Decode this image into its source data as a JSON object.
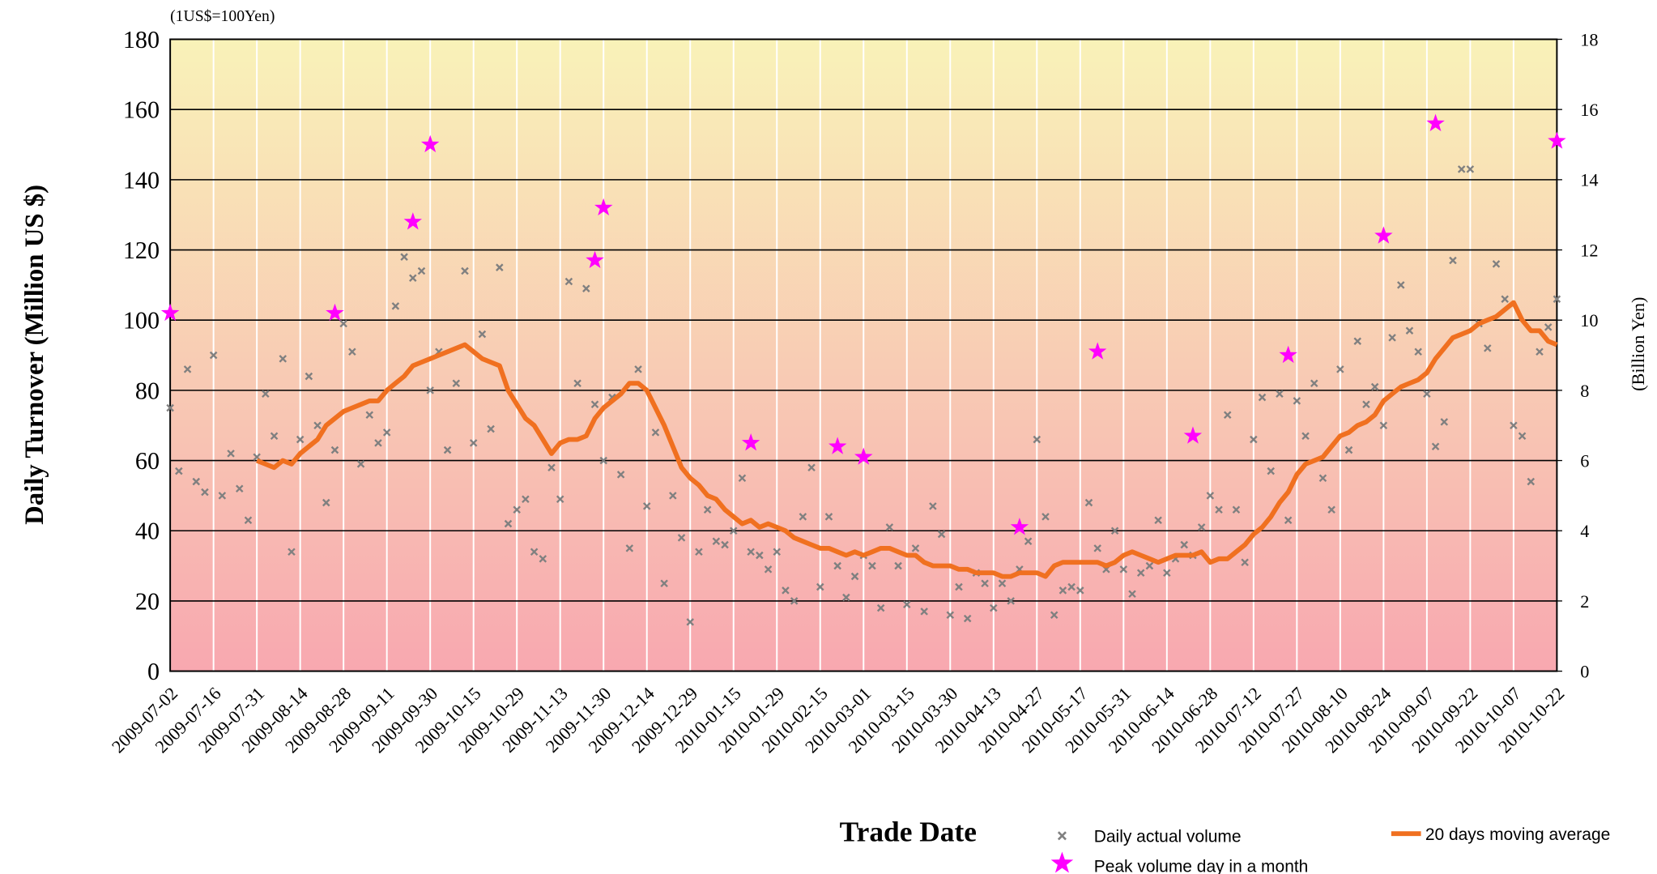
{
  "chart_data": {
    "type": "scatter",
    "subtitle": "(1US$=100Yen)",
    "x_label": "Trade Date",
    "y_label": "Daily Turnover (Million US $)",
    "y2_label": "(Billion Yen)",
    "categories": [
      "2009-07-02",
      null,
      null,
      null,
      null,
      "2009-07-16",
      null,
      null,
      null,
      null,
      "2009-07-31",
      null,
      null,
      null,
      null,
      "2009-08-14",
      null,
      null,
      null,
      null,
      "2009-08-28",
      null,
      null,
      null,
      null,
      "2009-09-11",
      null,
      null,
      null,
      null,
      "2009-09-30",
      null,
      null,
      null,
      null,
      "2009-10-15",
      null,
      null,
      null,
      null,
      "2009-10-29",
      null,
      null,
      null,
      null,
      "2009-11-13",
      null,
      null,
      null,
      null,
      "2009-11-30",
      null,
      null,
      null,
      null,
      "2009-12-14",
      null,
      null,
      null,
      null,
      "2009-12-29",
      null,
      null,
      null,
      null,
      "2010-01-15",
      null,
      null,
      null,
      null,
      "2010-01-29",
      null,
      null,
      null,
      null,
      "2010-02-15",
      null,
      null,
      null,
      null,
      "2010-03-01",
      null,
      null,
      null,
      null,
      "2010-03-15",
      null,
      null,
      null,
      null,
      "2010-03-30",
      null,
      null,
      null,
      null,
      "2010-04-13",
      null,
      null,
      null,
      null,
      "2010-04-27",
      null,
      null,
      null,
      null,
      "2010-05-17",
      null,
      null,
      null,
      null,
      "2010-05-31",
      null,
      null,
      null,
      null,
      "2010-06-14",
      null,
      null,
      null,
      null,
      "2010-06-28",
      null,
      null,
      null,
      null,
      "2010-07-12",
      null,
      null,
      null,
      null,
      "2010-07-27",
      null,
      null,
      null,
      null,
      "2010-08-10",
      null,
      null,
      null,
      null,
      "2010-08-24",
      null,
      null,
      null,
      null,
      "2010-09-07",
      null,
      null,
      null,
      null,
      "2010-09-22",
      null,
      null,
      null,
      null,
      "2010-10-07",
      null,
      null,
      null,
      null,
      "2010-10-22"
    ],
    "series": [
      {
        "name": "Daily actual volume",
        "type": "scatter",
        "marker": "x",
        "color": "#808080",
        "values": [
          75,
          57,
          86,
          54,
          51,
          90,
          50,
          62,
          52,
          43,
          61,
          79,
          67,
          89,
          34,
          66,
          84,
          70,
          48,
          63,
          99,
          91,
          59,
          73,
          65,
          68,
          104,
          118,
          112,
          114,
          80,
          91,
          63,
          82,
          114,
          65,
          96,
          69,
          115,
          42,
          46,
          49,
          34,
          32,
          58,
          49,
          111,
          82,
          109,
          76,
          60,
          78,
          56,
          35,
          86,
          47,
          68,
          25,
          50,
          38,
          14,
          34,
          46,
          37,
          36,
          40,
          55,
          34,
          33,
          29,
          34,
          23,
          20,
          44,
          58,
          24,
          44,
          30,
          21,
          27,
          33,
          30,
          18,
          41,
          30,
          19,
          35,
          17,
          47,
          39,
          16,
          24,
          15,
          28,
          25,
          18,
          25,
          20,
          29,
          37,
          66,
          44,
          16,
          23,
          24,
          23,
          48,
          35,
          29,
          40,
          29,
          22,
          28,
          30,
          43,
          28,
          32,
          36,
          33,
          41,
          50,
          46,
          73,
          46,
          31,
          66,
          78,
          57,
          79,
          43,
          77,
          67,
          82,
          55,
          46,
          86,
          63,
          94,
          76,
          81,
          70,
          95,
          110,
          97,
          91,
          79,
          64,
          71,
          117,
          143,
          143,
          99,
          92,
          116,
          106,
          70,
          67,
          54,
          91,
          98,
          106
        ]
      },
      {
        "name": "Peak volume day in a month",
        "type": "scatter",
        "marker": "star",
        "color": "#ff00ff",
        "values": [
          102,
          null,
          null,
          null,
          null,
          null,
          null,
          null,
          null,
          null,
          null,
          null,
          null,
          null,
          null,
          null,
          null,
          null,
          null,
          102,
          null,
          null,
          null,
          null,
          null,
          null,
          null,
          null,
          128,
          null,
          150,
          null,
          null,
          null,
          null,
          null,
          null,
          null,
          null,
          null,
          null,
          null,
          null,
          null,
          null,
          null,
          null,
          null,
          null,
          117,
          132,
          null,
          null,
          null,
          null,
          null,
          null,
          null,
          null,
          null,
          null,
          null,
          null,
          null,
          null,
          null,
          null,
          65,
          null,
          null,
          null,
          null,
          null,
          null,
          null,
          null,
          null,
          64,
          null,
          null,
          61,
          null,
          null,
          null,
          null,
          null,
          null,
          null,
          null,
          null,
          null,
          null,
          null,
          null,
          null,
          null,
          null,
          null,
          41,
          null,
          null,
          null,
          null,
          null,
          null,
          null,
          null,
          91,
          null,
          null,
          null,
          null,
          null,
          null,
          null,
          null,
          null,
          null,
          67,
          null,
          null,
          null,
          null,
          null,
          null,
          null,
          null,
          null,
          null,
          90,
          null,
          null,
          null,
          null,
          null,
          null,
          null,
          null,
          null,
          null,
          124,
          null,
          null,
          null,
          null,
          null,
          156,
          null,
          null,
          null,
          null,
          null,
          null,
          null,
          null,
          null,
          null,
          null,
          null,
          null,
          151
        ]
      },
      {
        "name": "20 days moving average",
        "type": "line",
        "color": "#f07020",
        "values": [
          null,
          null,
          null,
          null,
          null,
          null,
          null,
          null,
          null,
          null,
          60,
          59,
          58,
          60,
          59,
          62,
          64,
          66,
          70,
          72,
          74,
          75,
          76,
          77,
          77,
          80,
          82,
          84,
          87,
          88,
          89,
          90,
          91,
          92,
          93,
          91,
          89,
          88,
          87,
          80,
          76,
          72,
          70,
          66,
          62,
          65,
          66,
          66,
          67,
          72,
          75,
          77,
          79,
          82,
          82,
          80,
          75,
          70,
          64,
          58,
          55,
          53,
          50,
          49,
          46,
          44,
          42,
          43,
          41,
          42,
          41,
          40,
          38,
          37,
          36,
          35,
          35,
          34,
          33,
          34,
          33,
          34,
          35,
          35,
          34,
          33,
          33,
          31,
          30,
          30,
          30,
          29,
          29,
          28,
          28,
          28,
          27,
          27,
          28,
          28,
          28,
          27,
          30,
          31,
          31,
          31,
          31,
          31,
          30,
          31,
          33,
          34,
          33,
          32,
          31,
          32,
          33,
          33,
          33,
          34,
          31,
          32,
          32,
          34,
          36,
          39,
          41,
          44,
          48,
          51,
          56,
          59,
          60,
          61,
          64,
          67,
          68,
          70,
          71,
          73,
          77,
          79,
          81,
          82,
          83,
          85,
          89,
          92,
          95,
          96,
          97,
          99,
          100,
          101,
          103,
          105,
          100,
          97,
          97,
          94,
          93
        ]
      }
    ],
    "ylim": [
      0,
      180
    ],
    "yticks": [
      0,
      20,
      40,
      60,
      80,
      100,
      120,
      140,
      160,
      180
    ],
    "y2lim": [
      0,
      18
    ],
    "y2ticks": [
      0,
      2,
      4,
      6,
      8,
      10,
      12,
      14,
      16,
      18
    ],
    "grid": true,
    "legend": "bottom",
    "background": [
      "#f9f2b8",
      "#f8a8b0"
    ]
  }
}
